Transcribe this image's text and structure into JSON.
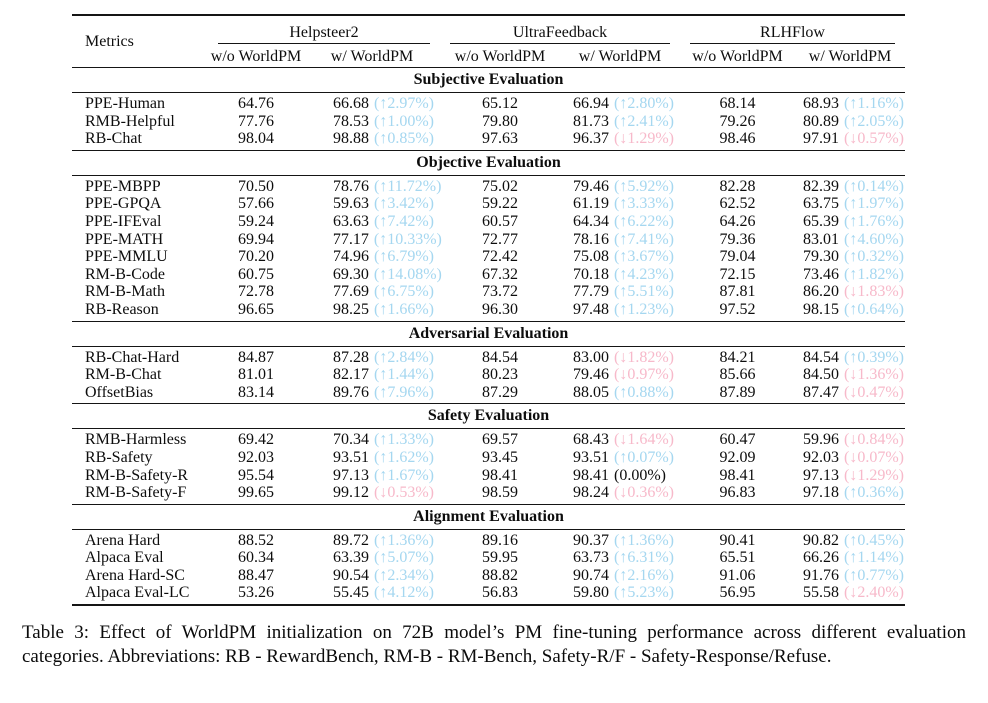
{
  "header": {
    "metrics_label": "Metrics",
    "groups": [
      {
        "name": "Helpsteer2",
        "sub": [
          "w/o WorldPM",
          "w/ WorldPM"
        ]
      },
      {
        "name": "UltraFeedback",
        "sub": [
          "w/o WorldPM",
          "w/ WorldPM"
        ]
      },
      {
        "name": "RLHFlow",
        "sub": [
          "w/o WorldPM",
          "w/ WorldPM"
        ]
      }
    ]
  },
  "colors": {
    "up": "#a5d7f0",
    "down": "#f7b9ca",
    "text": "#0d0d0d"
  },
  "sections": [
    {
      "title": "Subjective Evaluation",
      "rows": [
        {
          "metric": "PPE-Human",
          "cells": [
            {
              "v": "64.76"
            },
            {
              "v": "66.68",
              "delta": "2.97%",
              "dir": "up"
            },
            {
              "v": "65.12"
            },
            {
              "v": "66.94",
              "delta": "2.80%",
              "dir": "up"
            },
            {
              "v": "68.14"
            },
            {
              "v": "68.93",
              "delta": "1.16%",
              "dir": "up"
            }
          ]
        },
        {
          "metric": "RMB-Helpful",
          "cells": [
            {
              "v": "77.76"
            },
            {
              "v": "78.53",
              "delta": "1.00%",
              "dir": "up"
            },
            {
              "v": "79.80"
            },
            {
              "v": "81.73",
              "delta": "2.41%",
              "dir": "up"
            },
            {
              "v": "79.26"
            },
            {
              "v": "80.89",
              "delta": "2.05%",
              "dir": "up"
            }
          ]
        },
        {
          "metric": "RB-Chat",
          "cells": [
            {
              "v": "98.04"
            },
            {
              "v": "98.88",
              "delta": "0.85%",
              "dir": "up"
            },
            {
              "v": "97.63"
            },
            {
              "v": "96.37",
              "delta": "1.29%",
              "dir": "down"
            },
            {
              "v": "98.46"
            },
            {
              "v": "97.91",
              "delta": "0.57%",
              "dir": "down"
            }
          ]
        }
      ]
    },
    {
      "title": "Objective Evaluation",
      "rows": [
        {
          "metric": "PPE-MBPP",
          "cells": [
            {
              "v": "70.50"
            },
            {
              "v": "78.76",
              "delta": "11.72%",
              "dir": "up"
            },
            {
              "v": "75.02"
            },
            {
              "v": "79.46",
              "delta": "5.92%",
              "dir": "up"
            },
            {
              "v": "82.28"
            },
            {
              "v": "82.39",
              "delta": "0.14%",
              "dir": "up"
            }
          ]
        },
        {
          "metric": "PPE-GPQA",
          "cells": [
            {
              "v": "57.66"
            },
            {
              "v": "59.63",
              "delta": "3.42%",
              "dir": "up"
            },
            {
              "v": "59.22"
            },
            {
              "v": "61.19",
              "delta": "3.33%",
              "dir": "up"
            },
            {
              "v": "62.52"
            },
            {
              "v": "63.75",
              "delta": "1.97%",
              "dir": "up"
            }
          ]
        },
        {
          "metric": "PPE-IFEval",
          "cells": [
            {
              "v": "59.24"
            },
            {
              "v": "63.63",
              "delta": "7.42%",
              "dir": "up"
            },
            {
              "v": "60.57"
            },
            {
              "v": "64.34",
              "delta": "6.22%",
              "dir": "up"
            },
            {
              "v": "64.26"
            },
            {
              "v": "65.39",
              "delta": "1.76%",
              "dir": "up"
            }
          ]
        },
        {
          "metric": "PPE-MATH",
          "cells": [
            {
              "v": "69.94"
            },
            {
              "v": "77.17",
              "delta": "10.33%",
              "dir": "up"
            },
            {
              "v": "72.77"
            },
            {
              "v": "78.16",
              "delta": "7.41%",
              "dir": "up"
            },
            {
              "v": "79.36"
            },
            {
              "v": "83.01",
              "delta": "4.60%",
              "dir": "up"
            }
          ]
        },
        {
          "metric": "PPE-MMLU",
          "cells": [
            {
              "v": "70.20"
            },
            {
              "v": "74.96",
              "delta": "6.79%",
              "dir": "up"
            },
            {
              "v": "72.42"
            },
            {
              "v": "75.08",
              "delta": "3.67%",
              "dir": "up"
            },
            {
              "v": "79.04"
            },
            {
              "v": "79.30",
              "delta": "0.32%",
              "dir": "up"
            }
          ]
        },
        {
          "metric": "RM-B-Code",
          "cells": [
            {
              "v": "60.75"
            },
            {
              "v": "69.30",
              "delta": "14.08%",
              "dir": "up"
            },
            {
              "v": "67.32"
            },
            {
              "v": "70.18",
              "delta": "4.23%",
              "dir": "up"
            },
            {
              "v": "72.15"
            },
            {
              "v": "73.46",
              "delta": "1.82%",
              "dir": "up"
            }
          ]
        },
        {
          "metric": "RM-B-Math",
          "cells": [
            {
              "v": "72.78"
            },
            {
              "v": "77.69",
              "delta": "6.75%",
              "dir": "up"
            },
            {
              "v": "73.72"
            },
            {
              "v": "77.79",
              "delta": "5.51%",
              "dir": "up"
            },
            {
              "v": "87.81"
            },
            {
              "v": "86.20",
              "delta": "1.83%",
              "dir": "down"
            }
          ]
        },
        {
          "metric": "RB-Reason",
          "cells": [
            {
              "v": "96.65"
            },
            {
              "v": "98.25",
              "delta": "1.66%",
              "dir": "up"
            },
            {
              "v": "96.30"
            },
            {
              "v": "97.48",
              "delta": "1.23%",
              "dir": "up"
            },
            {
              "v": "97.52"
            },
            {
              "v": "98.15",
              "delta": "0.64%",
              "dir": "up"
            }
          ]
        }
      ]
    },
    {
      "title": "Adversarial Evaluation",
      "rows": [
        {
          "metric": "RB-Chat-Hard",
          "cells": [
            {
              "v": "84.87"
            },
            {
              "v": "87.28",
              "delta": "2.84%",
              "dir": "up"
            },
            {
              "v": "84.54"
            },
            {
              "v": "83.00",
              "delta": "1.82%",
              "dir": "down"
            },
            {
              "v": "84.21"
            },
            {
              "v": "84.54",
              "delta": "0.39%",
              "dir": "up"
            }
          ]
        },
        {
          "metric": "RM-B-Chat",
          "cells": [
            {
              "v": "81.01"
            },
            {
              "v": "82.17",
              "delta": "1.44%",
              "dir": "up"
            },
            {
              "v": "80.23"
            },
            {
              "v": "79.46",
              "delta": "0.97%",
              "dir": "down"
            },
            {
              "v": "85.66"
            },
            {
              "v": "84.50",
              "delta": "1.36%",
              "dir": "down"
            }
          ]
        },
        {
          "metric": "OffsetBias",
          "cells": [
            {
              "v": "83.14"
            },
            {
              "v": "89.76",
              "delta": "7.96%",
              "dir": "up"
            },
            {
              "v": "87.29"
            },
            {
              "v": "88.05",
              "delta": "0.88%",
              "dir": "up"
            },
            {
              "v": "87.89"
            },
            {
              "v": "87.47",
              "delta": "0.47%",
              "dir": "down"
            }
          ]
        }
      ]
    },
    {
      "title": "Safety Evaluation",
      "rows": [
        {
          "metric": "RMB-Harmless",
          "cells": [
            {
              "v": "69.42"
            },
            {
              "v": "70.34",
              "delta": "1.33%",
              "dir": "up"
            },
            {
              "v": "69.57"
            },
            {
              "v": "68.43",
              "delta": "1.64%",
              "dir": "down"
            },
            {
              "v": "60.47"
            },
            {
              "v": "59.96",
              "delta": "0.84%",
              "dir": "down"
            }
          ]
        },
        {
          "metric": "RB-Safety",
          "cells": [
            {
              "v": "92.03"
            },
            {
              "v": "93.51",
              "delta": "1.62%",
              "dir": "up"
            },
            {
              "v": "93.45"
            },
            {
              "v": "93.51",
              "delta": "0.07%",
              "dir": "up"
            },
            {
              "v": "92.09"
            },
            {
              "v": "92.03",
              "delta": "0.07%",
              "dir": "down"
            }
          ]
        },
        {
          "metric": "RM-B-Safety-R",
          "cells": [
            {
              "v": "95.54"
            },
            {
              "v": "97.13",
              "delta": "1.67%",
              "dir": "up"
            },
            {
              "v": "98.41"
            },
            {
              "v": "98.41",
              "delta": "0.00%",
              "dir": "none"
            },
            {
              "v": "98.41"
            },
            {
              "v": "97.13",
              "delta": "1.29%",
              "dir": "down"
            }
          ]
        },
        {
          "metric": "RM-B-Safety-F",
          "cells": [
            {
              "v": "99.65"
            },
            {
              "v": "99.12",
              "delta": "0.53%",
              "dir": "down"
            },
            {
              "v": "98.59"
            },
            {
              "v": "98.24",
              "delta": "0.36%",
              "dir": "down"
            },
            {
              "v": "96.83"
            },
            {
              "v": "97.18",
              "delta": "0.36%",
              "dir": "up"
            }
          ]
        }
      ]
    },
    {
      "title": "Alignment Evaluation",
      "rows": [
        {
          "metric": "Arena Hard",
          "cells": [
            {
              "v": "88.52"
            },
            {
              "v": "89.72",
              "delta": "1.36%",
              "dir": "up"
            },
            {
              "v": "89.16"
            },
            {
              "v": "90.37",
              "delta": "1.36%",
              "dir": "up"
            },
            {
              "v": "90.41"
            },
            {
              "v": "90.82",
              "delta": "0.45%",
              "dir": "up"
            }
          ]
        },
        {
          "metric": "Alpaca Eval",
          "cells": [
            {
              "v": "60.34"
            },
            {
              "v": "63.39",
              "delta": "5.07%",
              "dir": "up"
            },
            {
              "v": "59.95"
            },
            {
              "v": "63.73",
              "delta": "6.31%",
              "dir": "up"
            },
            {
              "v": "65.51"
            },
            {
              "v": "66.26",
              "delta": "1.14%",
              "dir": "up"
            }
          ]
        },
        {
          "metric": "Arena Hard-SC",
          "cells": [
            {
              "v": "88.47"
            },
            {
              "v": "90.54",
              "delta": "2.34%",
              "dir": "up"
            },
            {
              "v": "88.82"
            },
            {
              "v": "90.74",
              "delta": "2.16%",
              "dir": "up"
            },
            {
              "v": "91.06"
            },
            {
              "v": "91.76",
              "delta": "0.77%",
              "dir": "up"
            }
          ]
        },
        {
          "metric": "Alpaca Eval-LC",
          "cells": [
            {
              "v": "53.26"
            },
            {
              "v": "55.45",
              "delta": "4.12%",
              "dir": "up"
            },
            {
              "v": "56.83"
            },
            {
              "v": "59.80",
              "delta": "5.23%",
              "dir": "up"
            },
            {
              "v": "56.95"
            },
            {
              "v": "55.58",
              "delta": "2.40%",
              "dir": "down"
            }
          ]
        }
      ]
    }
  ],
  "caption": "Table 3: Effect of WorldPM initialization on 72B model’s PM fine-tuning performance across different evaluation categories.  Abbreviations: RB - RewardBench, RM-B - RM-Bench, Safety-R/F - Safety-Response/Refuse."
}
